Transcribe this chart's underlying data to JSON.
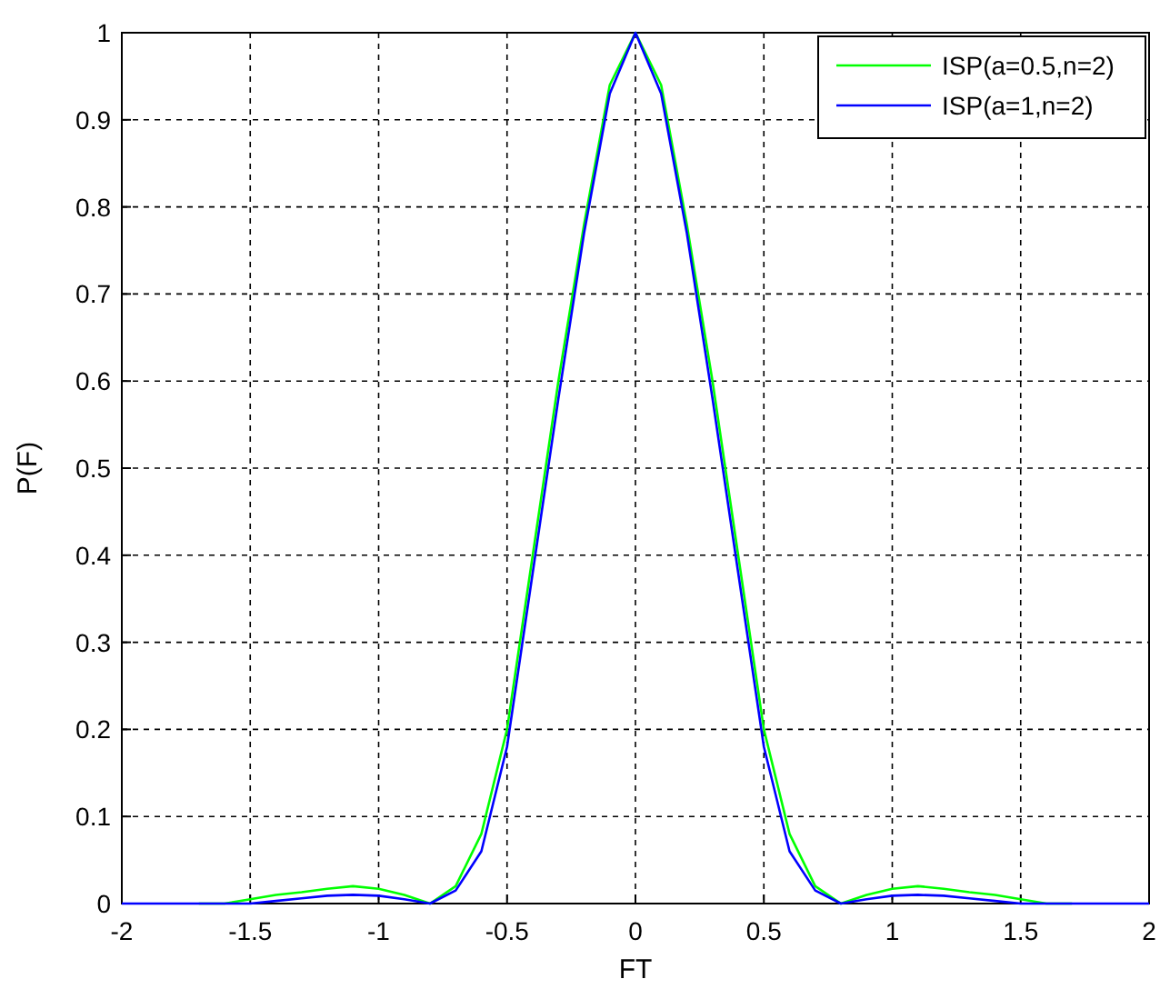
{
  "chart_data": {
    "type": "line",
    "xlabel": "FT",
    "ylabel": "P(F)",
    "x": [
      -2,
      -1.9,
      -1.8,
      -1.7,
      -1.6,
      -1.5,
      -1.4,
      -1.3,
      -1.2,
      -1.1,
      -1,
      -0.9,
      -0.8,
      -0.7,
      -0.6,
      -0.5,
      -0.4,
      -0.3,
      -0.2,
      -0.1,
      0,
      0.1,
      0.2,
      0.3,
      0.4,
      0.5,
      0.6,
      0.7,
      0.8,
      0.9,
      1,
      1.1,
      1.2,
      1.3,
      1.4,
      1.5,
      1.6,
      1.7,
      1.8,
      1.9,
      2
    ],
    "series": [
      {
        "name": "ISP(a=0.5,n=2)",
        "color": "#00ff00",
        "values": [
          null,
          null,
          null,
          0,
          0,
          0.005,
          0.01,
          0.013,
          0.017,
          0.02,
          0.017,
          0.01,
          0,
          0.02,
          0.08,
          0.2,
          0.4,
          0.6,
          0.78,
          0.94,
          1,
          0.94,
          0.78,
          0.6,
          0.4,
          0.2,
          0.08,
          0.02,
          0,
          0.01,
          0.017,
          0.02,
          0.017,
          0.013,
          0.01,
          0.005,
          0,
          0,
          null,
          null,
          null
        ]
      },
      {
        "name": "ISP(a=1,n=2)",
        "color": "#0000ff",
        "values": [
          0,
          0,
          0,
          0,
          0,
          0,
          0.003,
          0.006,
          0.009,
          0.01,
          0.009,
          0.005,
          0,
          0.015,
          0.06,
          0.18,
          0.38,
          0.58,
          0.77,
          0.93,
          1,
          0.93,
          0.77,
          0.58,
          0.38,
          0.18,
          0.06,
          0.015,
          0,
          0.005,
          0.009,
          0.01,
          0.009,
          0.006,
          0.003,
          0,
          0,
          0,
          0,
          0,
          0
        ]
      }
    ],
    "xlim": [
      -2,
      2
    ],
    "xticks": [
      -2,
      -1.5,
      -1,
      -0.5,
      0,
      0.5,
      1,
      1.5,
      2
    ],
    "ylim": [
      0,
      1
    ],
    "yticks": [
      0,
      0.1,
      0.2,
      0.3,
      0.4,
      0.5,
      0.6,
      0.7,
      0.8,
      0.9,
      1
    ],
    "grid": true,
    "legend": "top right",
    "marker": "none",
    "line_style": "solid"
  }
}
